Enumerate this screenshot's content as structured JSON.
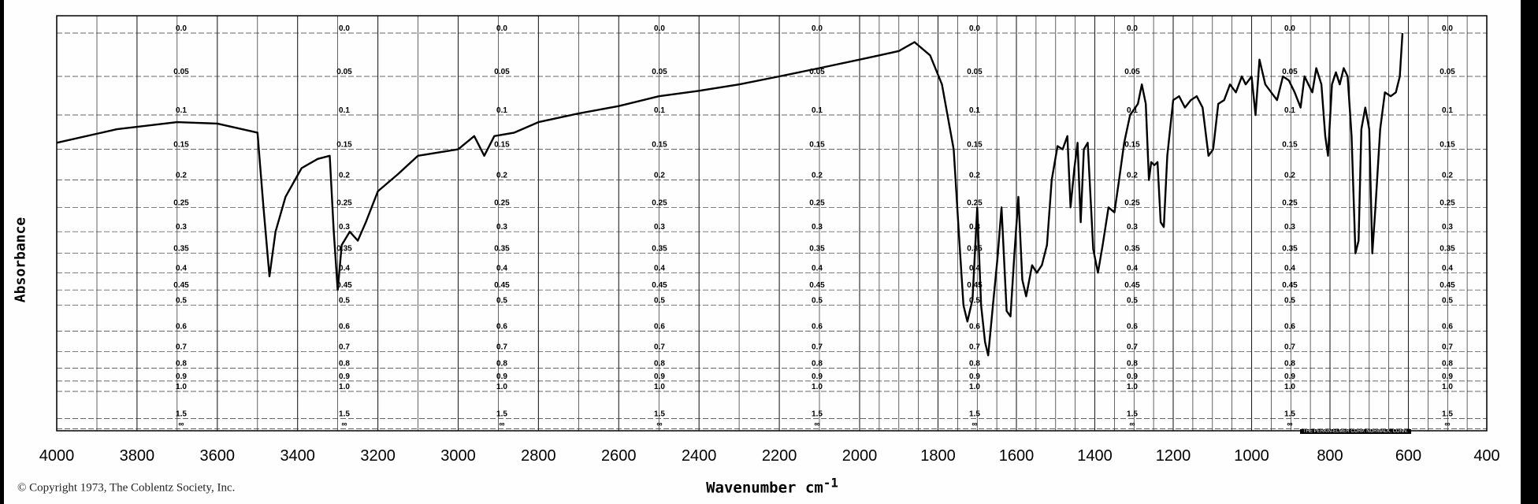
{
  "chart_data": {
    "type": "line",
    "xlabel": "Wavenumber cm",
    "xlabel_superscript": "-1",
    "ylabel": "Absorbance",
    "xlim": [
      4000,
      400
    ],
    "x_ticks": [
      "4000",
      "3800",
      "3600",
      "3400",
      "3200",
      "3000",
      "2800",
      "2600",
      "2400",
      "2200",
      "2000",
      "1800",
      "1600",
      "1400",
      "1200",
      "1000",
      "800",
      "600",
      "400"
    ],
    "absorbance_levels": [
      "0.0",
      "0.05",
      "0.1",
      "0.15",
      "0.2",
      "0.25",
      "0.3",
      "0.35",
      "0.4",
      "0.45",
      "0.5",
      "0.6",
      "0.7",
      "0.8",
      "0.9",
      "1.0",
      "1.5",
      "∞"
    ],
    "grid": true,
    "series": [
      {
        "values_absorbance_vs_wavenumber": [
          [
            4000,
            0.14
          ],
          [
            3850,
            0.12
          ],
          [
            3700,
            0.11
          ],
          [
            3600,
            0.112
          ],
          [
            3500,
            0.125
          ],
          [
            3485,
            0.25
          ],
          [
            3470,
            0.41
          ],
          [
            3455,
            0.3
          ],
          [
            3430,
            0.23
          ],
          [
            3390,
            0.18
          ],
          [
            3350,
            0.165
          ],
          [
            3320,
            0.16
          ],
          [
            3310,
            0.3
          ],
          [
            3300,
            0.45
          ],
          [
            3290,
            0.33
          ],
          [
            3270,
            0.3
          ],
          [
            3250,
            0.32
          ],
          [
            3230,
            0.28
          ],
          [
            3200,
            0.22
          ],
          [
            3150,
            0.19
          ],
          [
            3100,
            0.16
          ],
          [
            3000,
            0.15
          ],
          [
            2960,
            0.13
          ],
          [
            2935,
            0.16
          ],
          [
            2910,
            0.13
          ],
          [
            2860,
            0.125
          ],
          [
            2800,
            0.11
          ],
          [
            2700,
            0.098
          ],
          [
            2600,
            0.088
          ],
          [
            2500,
            0.075
          ],
          [
            2400,
            0.068
          ],
          [
            2300,
            0.06
          ],
          [
            2200,
            0.05
          ],
          [
            2100,
            0.04
          ],
          [
            2000,
            0.03
          ],
          [
            1950,
            0.025
          ],
          [
            1900,
            0.02
          ],
          [
            1860,
            0.01
          ],
          [
            1820,
            0.025
          ],
          [
            1790,
            0.06
          ],
          [
            1760,
            0.15
          ],
          [
            1745,
            0.33
          ],
          [
            1735,
            0.5
          ],
          [
            1725,
            0.56
          ],
          [
            1712,
            0.48
          ],
          [
            1700,
            0.25
          ],
          [
            1690,
            0.5
          ],
          [
            1680,
            0.65
          ],
          [
            1672,
            0.72
          ],
          [
            1660,
            0.5
          ],
          [
            1648,
            0.36
          ],
          [
            1638,
            0.25
          ],
          [
            1625,
            0.52
          ],
          [
            1615,
            0.54
          ],
          [
            1605,
            0.35
          ],
          [
            1595,
            0.23
          ],
          [
            1585,
            0.42
          ],
          [
            1575,
            0.47
          ],
          [
            1560,
            0.38
          ],
          [
            1548,
            0.4
          ],
          [
            1535,
            0.38
          ],
          [
            1522,
            0.33
          ],
          [
            1510,
            0.2
          ],
          [
            1495,
            0.145
          ],
          [
            1482,
            0.15
          ],
          [
            1470,
            0.13
          ],
          [
            1462,
            0.25
          ],
          [
            1452,
            0.18
          ],
          [
            1444,
            0.14
          ],
          [
            1436,
            0.28
          ],
          [
            1428,
            0.15
          ],
          [
            1418,
            0.14
          ],
          [
            1404,
            0.34
          ],
          [
            1392,
            0.4
          ],
          [
            1380,
            0.33
          ],
          [
            1365,
            0.25
          ],
          [
            1350,
            0.26
          ],
          [
            1338,
            0.2
          ],
          [
            1325,
            0.14
          ],
          [
            1310,
            0.1
          ],
          [
            1290,
            0.085
          ],
          [
            1280,
            0.06
          ],
          [
            1270,
            0.085
          ],
          [
            1262,
            0.2
          ],
          [
            1256,
            0.17
          ],
          [
            1248,
            0.175
          ],
          [
            1240,
            0.17
          ],
          [
            1232,
            0.28
          ],
          [
            1224,
            0.29
          ],
          [
            1215,
            0.16
          ],
          [
            1200,
            0.08
          ],
          [
            1185,
            0.075
          ],
          [
            1170,
            0.09
          ],
          [
            1155,
            0.08
          ],
          [
            1140,
            0.075
          ],
          [
            1125,
            0.09
          ],
          [
            1110,
            0.16
          ],
          [
            1098,
            0.15
          ],
          [
            1085,
            0.085
          ],
          [
            1070,
            0.08
          ],
          [
            1055,
            0.06
          ],
          [
            1040,
            0.07
          ],
          [
            1025,
            0.05
          ],
          [
            1015,
            0.06
          ],
          [
            1000,
            0.05
          ],
          [
            990,
            0.1
          ],
          [
            980,
            0.03
          ],
          [
            965,
            0.06
          ],
          [
            950,
            0.07
          ],
          [
            935,
            0.08
          ],
          [
            920,
            0.05
          ],
          [
            905,
            0.055
          ],
          [
            890,
            0.07
          ],
          [
            875,
            0.09
          ],
          [
            865,
            0.05
          ],
          [
            855,
            0.06
          ],
          [
            845,
            0.07
          ],
          [
            835,
            0.04
          ],
          [
            822,
            0.06
          ],
          [
            812,
            0.13
          ],
          [
            805,
            0.16
          ],
          [
            795,
            0.06
          ],
          [
            785,
            0.045
          ],
          [
            775,
            0.06
          ],
          [
            765,
            0.04
          ],
          [
            755,
            0.05
          ],
          [
            745,
            0.13
          ],
          [
            735,
            0.35
          ],
          [
            727,
            0.32
          ],
          [
            720,
            0.12
          ],
          [
            710,
            0.09
          ],
          [
            700,
            0.12
          ],
          [
            692,
            0.35
          ],
          [
            684,
            0.25
          ],
          [
            672,
            0.12
          ],
          [
            660,
            0.07
          ],
          [
            645,
            0.075
          ],
          [
            632,
            0.07
          ],
          [
            622,
            0.05
          ],
          [
            615,
            0.0
          ]
        ]
      }
    ]
  },
  "footer": {
    "copyright": "© Copyright 1973, The Coblentz Society, Inc.",
    "maker": "THE PERKIN-ELMER CORP. NORWALK, CONN."
  }
}
